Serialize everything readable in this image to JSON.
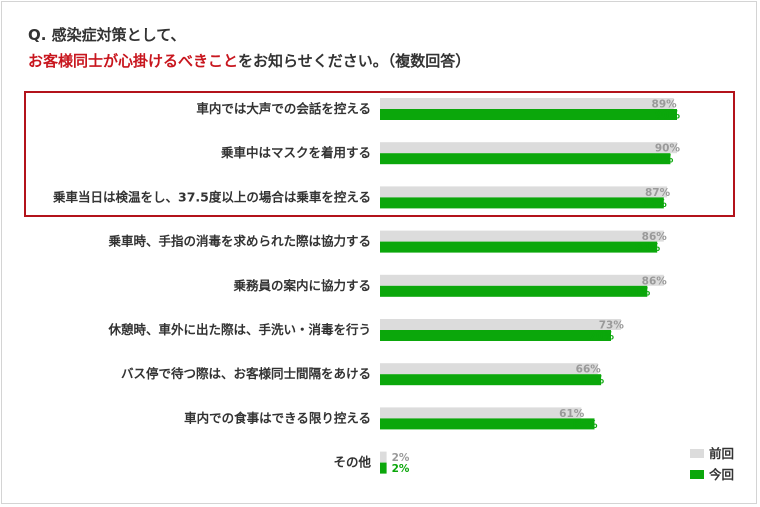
{
  "title": {
    "line1": "Q. 感染症対策として、",
    "line2_highlight": "お客様同士が心掛けるべきこと",
    "line2_rest": "をお知らせください。（複数回答）"
  },
  "chart_data": {
    "type": "bar",
    "orientation": "horizontal",
    "xlim": [
      0,
      100
    ],
    "unit": "%",
    "categories": [
      "車内では大声での会話を控える",
      "乗車中はマスクを着用する",
      "乗車当日は検温をし、37.5度以上の場合は乗車を控える",
      "乗車時、手指の消毒を求められた際は協力する",
      "乗務員の案内に協力する",
      "休憩時、車外に出た際は、手洗い・消毒を行う",
      "バス停で待つ際は、お客様同士間隔をあける",
      "車内での食事はできる限り控える",
      "その他"
    ],
    "series": [
      {
        "name": "前回",
        "color": "#dcdcdc",
        "label_color": "#9a9a9a",
        "values": [
          89,
          90,
          87,
          86,
          86,
          73,
          66,
          61,
          2
        ]
      },
      {
        "name": "今回",
        "color": "#0ba70b",
        "label_color": "#0ba70b",
        "values": [
          90,
          88,
          86,
          84,
          81,
          70,
          67,
          65,
          2
        ]
      }
    ],
    "highlighted_categories": [
      0,
      1,
      2
    ],
    "legend_position": "bottom-right",
    "grid": false
  }
}
